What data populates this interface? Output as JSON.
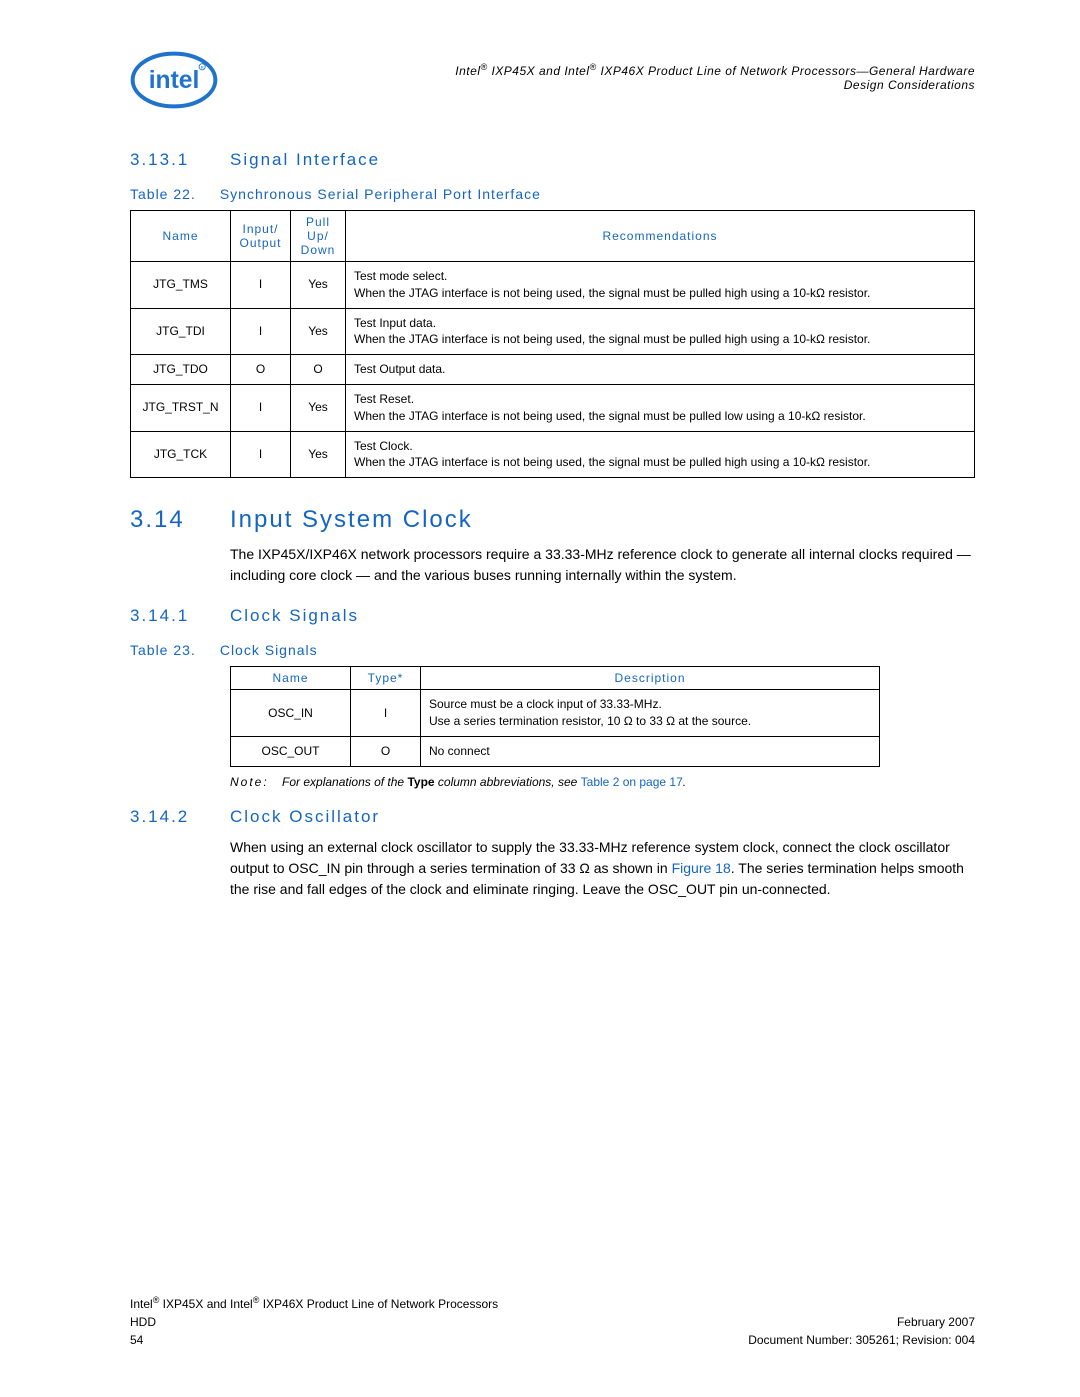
{
  "header": {
    "title_line1": "Intel® IXP45X and Intel® IXP46X Product Line of Network Processors—General Hardware",
    "title_line2": "Design Considerations"
  },
  "logo": {
    "text": "intel",
    "color": "#1f73cc",
    "circle_stroke": "#1f73cc"
  },
  "section_3_13_1": {
    "number": "3.13.1",
    "title": "Signal Interface"
  },
  "table22": {
    "caption_prefix": "Table 22.",
    "caption_title": "Synchronous Serial Peripheral Port Interface",
    "headers": [
      "Name",
      "Input/\nOutput",
      "Pull\nUp/\nDown",
      "Recommendations"
    ],
    "rows": [
      {
        "name": "JTG_TMS",
        "io": "I",
        "pull": "Yes",
        "rec": "Test mode select.\nWhen the JTAG interface is not being used, the signal must be pulled high using a 10-kΩ resistor."
      },
      {
        "name": "JTG_TDI",
        "io": "I",
        "pull": "Yes",
        "rec": "Test Input data.\nWhen the JTAG interface is not being used, the signal must be pulled high using a 10-kΩ resistor."
      },
      {
        "name": "JTG_TDO",
        "io": "O",
        "pull": "O",
        "rec": "Test Output data."
      },
      {
        "name": "JTG_TRST_N",
        "io": "I",
        "pull": "Yes",
        "rec": "Test Reset.\nWhen the JTAG interface is not being used, the signal must be pulled low using a 10-kΩ resistor."
      },
      {
        "name": "JTG_TCK",
        "io": "I",
        "pull": "Yes",
        "rec": "Test Clock.\nWhen the JTAG interface is not being used, the signal must be pulled high using a 10-kΩ resistor."
      }
    ]
  },
  "section_3_14": {
    "number": "3.14",
    "title": "Input System Clock",
    "body": "The IXP45X/IXP46X network processors require a 33.33-MHz reference clock to generate all internal clocks required — including core clock — and the various buses running internally within the system."
  },
  "section_3_14_1": {
    "number": "3.14.1",
    "title": "Clock Signals"
  },
  "table23": {
    "caption_prefix": "Table 23.",
    "caption_title": "Clock Signals",
    "headers": [
      "Name",
      "Type*",
      "Description"
    ],
    "rows": [
      {
        "name": "OSC_IN",
        "type": "I",
        "desc": "Source must be a clock input of 33.33-MHz.\nUse a series termination resistor, 10 Ω to 33 Ω at the source."
      },
      {
        "name": "OSC_OUT",
        "type": "O",
        "desc": "No connect"
      }
    ],
    "note_label": "Note:",
    "note_before": "For explanations of the ",
    "note_bold": "Type",
    "note_after": " column abbreviations, see ",
    "note_link": "Table 2 on page 17",
    "note_end": "."
  },
  "section_3_14_2": {
    "number": "3.14.2",
    "title": "Clock Oscillator",
    "body_before": "When using an external clock oscillator to supply the 33.33-MHz reference system clock, connect the clock oscillator output to OSC_IN pin through a series termination of 33 Ω as shown in ",
    "body_link": "Figure 18",
    "body_after": ". The series termination helps smooth the rise and fall edges of the clock and eliminate ringing. Leave the OSC_OUT pin un-connected."
  },
  "footer": {
    "left_line1": "Intel® IXP45X and Intel® IXP46X Product Line of Network Processors",
    "left_line2": "HDD",
    "left_line3": "54",
    "right_line1": "February 2007",
    "right_line2": "Document Number: 305261; Revision: 004"
  },
  "colors": {
    "blue": "#1565c0",
    "text": "#000000",
    "background": "#ffffff"
  }
}
